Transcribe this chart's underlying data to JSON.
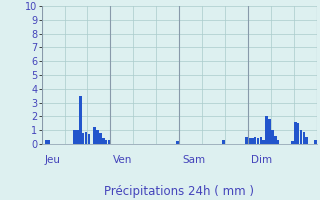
{
  "title": "Précipitations 24h ( mm )",
  "ylim": [
    0,
    10
  ],
  "yticks": [
    0,
    1,
    2,
    3,
    4,
    5,
    6,
    7,
    8,
    9,
    10
  ],
  "background_color": "#ddf0f0",
  "grid_color": "#aacccc",
  "bar_color": "#2255cc",
  "day_labels": [
    "Jeu",
    "Ven",
    "Sam",
    "Dim"
  ],
  "num_bars": 96,
  "values": [
    0.0,
    0.3,
    0.3,
    0.0,
    0.0,
    0.0,
    0.0,
    0.0,
    0.0,
    0.0,
    0.0,
    1.0,
    1.0,
    3.5,
    0.8,
    0.9,
    0.7,
    0.0,
    1.2,
    1.0,
    0.8,
    0.4,
    0.3,
    0.3,
    0.0,
    0.0,
    0.0,
    0.0,
    0.0,
    0.0,
    0.0,
    0.0,
    0.0,
    0.0,
    0.0,
    0.0,
    0.0,
    0.0,
    0.0,
    0.0,
    0.0,
    0.0,
    0.0,
    0.0,
    0.0,
    0.0,
    0.0,
    0.2,
    0.0,
    0.0,
    0.0,
    0.0,
    0.0,
    0.0,
    0.0,
    0.0,
    0.0,
    0.0,
    0.0,
    0.0,
    0.0,
    0.0,
    0.0,
    0.3,
    0.0,
    0.0,
    0.0,
    0.0,
    0.0,
    0.0,
    0.0,
    0.5,
    0.4,
    0.4,
    0.5,
    0.4,
    0.5,
    0.3,
    2.0,
    1.8,
    1.0,
    0.6,
    0.3,
    0.0,
    0.0,
    0.0,
    0.0,
    0.2,
    1.6,
    1.5,
    1.0,
    0.9,
    0.5,
    0.0,
    0.0,
    0.3
  ],
  "title_color": "#4444bb",
  "tick_color": "#4444bb",
  "day_label_color": "#4444bb",
  "title_fontsize": 8.5,
  "tick_fontsize": 7,
  "day_fontsize": 7.5,
  "vline_color": "#8899aa"
}
